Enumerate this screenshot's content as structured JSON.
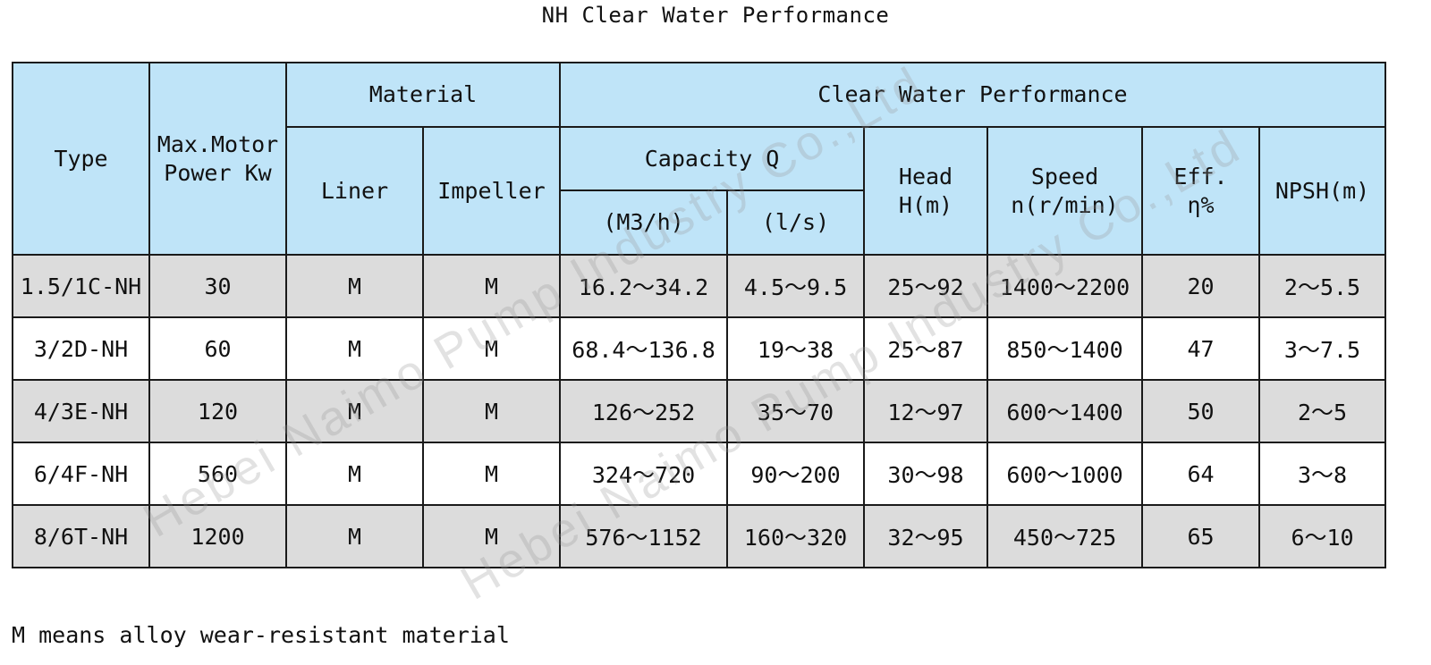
{
  "title": "NH Clear Water Performance",
  "columns": {
    "type": "Type",
    "power_line1": "Max.Motor",
    "power_line2": "Power Kw",
    "material": "Material",
    "liner": "Liner",
    "impeller": "Impeller",
    "performance": "Clear Water Performance",
    "capacity": "Capacity Q",
    "cap_m3h": "(M3/h)",
    "cap_ls": "(l/s)",
    "head_line1": "Head",
    "head_line2": "H(m)",
    "speed_line1": "Speed",
    "speed_line2": "n(r/min)",
    "eff_line1": "Eff.",
    "eff_line2": "η%",
    "npsh": "NPSH(m)"
  },
  "rows": [
    {
      "type": "1.5/1C-NH",
      "power": "30",
      "liner": "M",
      "impeller": "M",
      "cap_m3h": "16.2～34.2",
      "cap_ls": "4.5～9.5",
      "head": "25～92",
      "speed": "1400～2200",
      "eff": "20",
      "npsh": "2～5.5"
    },
    {
      "type": "3/2D-NH",
      "power": "60",
      "liner": "M",
      "impeller": "M",
      "cap_m3h": "68.4～136.8",
      "cap_ls": "19～38",
      "head": "25～87",
      "speed": "850～1400",
      "eff": "47",
      "npsh": "3～7.5"
    },
    {
      "type": "4/3E-NH",
      "power": "120",
      "liner": "M",
      "impeller": "M",
      "cap_m3h": "126～252",
      "cap_ls": "35～70",
      "head": "12～97",
      "speed": "600～1400",
      "eff": "50",
      "npsh": "2～5"
    },
    {
      "type": "6/4F-NH",
      "power": "560",
      "liner": "M",
      "impeller": "M",
      "cap_m3h": "324～720",
      "cap_ls": "90～200",
      "head": "30～98",
      "speed": "600～1000",
      "eff": "64",
      "npsh": "3～8"
    },
    {
      "type": "8/6T-NH",
      "power": "1200",
      "liner": "M",
      "impeller": "M",
      "cap_m3h": "576～1152",
      "cap_ls": "160～320",
      "head": "32～95",
      "speed": "450～725",
      "eff": "65",
      "npsh": "6～10"
    }
  ],
  "note": "M means alloy wear-resistant material",
  "watermark": {
    "left": "Hebei Naimo Pump Industry Co.,Ltd",
    "right": "Hebei Naimo Pump Industry Co.,Ltd"
  },
  "colors": {
    "header_bg": "#bfe4f8",
    "row_shaded": "#dcdcdc",
    "row_plain": "#ffffff",
    "border": "#1a1a1a"
  }
}
